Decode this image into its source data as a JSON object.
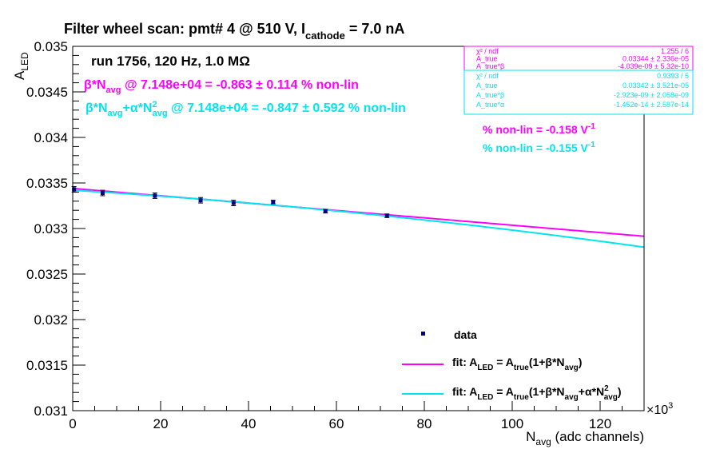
{
  "chart_data": {
    "type": "scatter",
    "title": {
      "prefix": "Filter wheel scan: pmt#   4 @   510 V, I",
      "sub": "cathode",
      "suffix": " = 7.0 nA"
    },
    "run_info": "run 1756, 120 Hz, 1.0 MΩ",
    "xlabel": {
      "main": "N",
      "sub": "avg",
      "rest": " (adc channels)"
    },
    "ylabel": {
      "main": "A",
      "sub": "LED"
    },
    "x_multiplier": "×10",
    "x_multiplier_exp": "3",
    "xlim": [
      0,
      130
    ],
    "ylim": [
      0.031,
      0.035
    ],
    "x_ticks": [
      0,
      20,
      40,
      60,
      80,
      100,
      120
    ],
    "y_ticks": [
      0.031,
      0.0315,
      0.032,
      0.0325,
      0.033,
      0.0335,
      0.034,
      0.0345,
      0.035
    ],
    "y_tick_labels": [
      "0.031",
      "0.0315",
      "0.032",
      "0.0325",
      "0.033",
      "0.0335",
      "0.034",
      "0.0345",
      "0.035"
    ],
    "x_tick_labels": [
      "0",
      "20",
      "40",
      "60",
      "80",
      "100",
      "120"
    ],
    "data_points": [
      {
        "x": 0.3,
        "y": 0.03343,
        "err": 3e-05
      },
      {
        "x": 6.8,
        "y": 0.03339,
        "err": 3e-05
      },
      {
        "x": 18.7,
        "y": 0.03336,
        "err": 3e-05
      },
      {
        "x": 29.1,
        "y": 0.03331,
        "err": 3e-05
      },
      {
        "x": 36.6,
        "y": 0.03328,
        "err": 3e-05
      },
      {
        "x": 45.6,
        "y": 0.03329,
        "err": 2e-05
      },
      {
        "x": 57.5,
        "y": 0.03319,
        "err": 2e-05
      },
      {
        "x": 71.5,
        "y": 0.03314,
        "err": 2e-05
      }
    ],
    "fits": [
      {
        "name": "fit_linear",
        "color": "#ff00ff",
        "a": 0.03344,
        "b": -4.039e-09,
        "c": 0
      },
      {
        "name": "fit_quadratic",
        "color": "#00e5ee",
        "a": 0.03342,
        "b": -2.923e-09,
        "c": -1.452e-14
      }
    ],
    "annotations": {
      "beta_line": {
        "pre": "β*N",
        "sub": "avg",
        "post": " @ 7.148e+04 = -0.863 ± 0.114 % non-lin",
        "color": "#ff00ff"
      },
      "alpha_line": {
        "pre": "β*N",
        "sub1": "avg",
        "mid": "+α*N",
        "sup": "2",
        "sub2": "avg",
        "post": " @ 7.148e+04 = -0.847 ± 0.592 % non-lin",
        "color": "#00e5ee"
      },
      "nonlin_1": {
        "text": "% non-lin = -0.158 V",
        "sup": "-1",
        "color": "#ff00ff"
      },
      "nonlin_2": {
        "text": "% non-lin = -0.155 V",
        "sup": "-1",
        "color": "#00e5ee"
      }
    },
    "stats_box_1": {
      "color": "#ff00ff",
      "rows": [
        {
          "label": "χ² / ndf",
          "value": "1.255 / 6"
        },
        {
          "label": "A_true",
          "value": "0.03344 ± 2.336e-05"
        },
        {
          "label": "A_true*β",
          "value": "-4.039e-09 ± 5.32e-10"
        }
      ]
    },
    "stats_box_2": {
      "color": "#00e5ee",
      "rows": [
        {
          "label": "χ² / ndf",
          "value": "0.9393 / 5"
        },
        {
          "label": "A_true",
          "value": "0.03342 ± 3.521e-05"
        },
        {
          "label": "A_true*β",
          "value": "-2.923e-09 ± 2.058e-09"
        },
        {
          "label": "A_true*α",
          "value": "-1.452e-14 ± 2.587e-14"
        }
      ]
    },
    "legend": {
      "placement": "bottom-right",
      "data_label": "data",
      "fit1_label": {
        "pre": "fit: A",
        "s1": "LED",
        "mid": " = A",
        "s2": "true",
        "post1": "(1+β*N",
        "s3": "avg",
        "post2": ")"
      },
      "fit2_label": {
        "pre": "fit: A",
        "s1": "LED",
        "mid": " = A",
        "s2": "true",
        "post1": "(1+β*N",
        "s3": "avg",
        "post2": "+α*N",
        "sup": "2",
        "s4": "avg",
        "post3": ")"
      }
    }
  }
}
